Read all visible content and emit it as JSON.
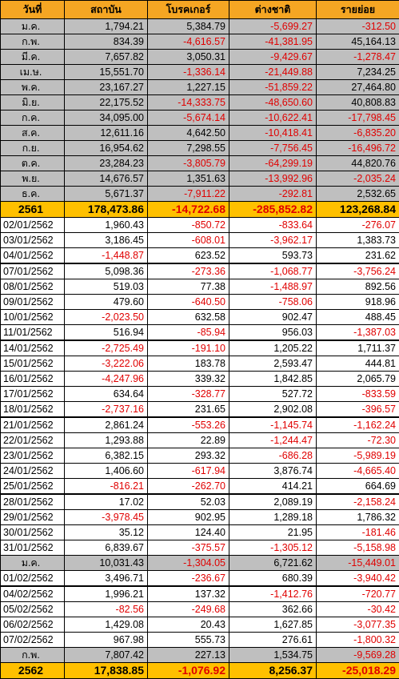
{
  "colors": {
    "header": "#f5a623",
    "month_row": "#bfbfbf",
    "year_row": "#ffc000",
    "negative": "#e00000"
  },
  "headers": [
    "วันที่",
    "สถาบัน",
    "โบรคเกอร์",
    "ต่างชาติ",
    "รายย่อย"
  ],
  "rows": [
    {
      "type": "month",
      "cells": [
        "ม.ค.",
        "1,794.21",
        "5,384.79",
        "-5,699.27",
        "-312.50"
      ]
    },
    {
      "type": "month",
      "cells": [
        "ก.พ.",
        "834.39",
        "-4,616.57",
        "-41,381.95",
        "45,164.13"
      ]
    },
    {
      "type": "month",
      "cells": [
        "มี.ค.",
        "7,657.82",
        "3,050.31",
        "-9,429.67",
        "-1,278.47"
      ]
    },
    {
      "type": "month",
      "cells": [
        "เม.ษ.",
        "15,551.70",
        "-1,336.14",
        "-21,449.88",
        "7,234.25"
      ]
    },
    {
      "type": "month",
      "cells": [
        "พ.ค.",
        "23,167.27",
        "1,227.15",
        "-51,859.22",
        "27,464.80"
      ]
    },
    {
      "type": "month",
      "cells": [
        "มิ.ย.",
        "22,175.52",
        "-14,333.75",
        "-48,650.60",
        "40,808.83"
      ]
    },
    {
      "type": "month",
      "cells": [
        "ก.ค.",
        "34,095.00",
        "-5,674.14",
        "-10,622.41",
        "-17,798.45"
      ]
    },
    {
      "type": "month",
      "cells": [
        "ส.ค.",
        "12,611.16",
        "4,642.50",
        "-10,418.41",
        "-6,835.20"
      ]
    },
    {
      "type": "month",
      "cells": [
        "ก.ย.",
        "16,954.62",
        "7,298.55",
        "-7,756.45",
        "-16,496.72"
      ]
    },
    {
      "type": "month",
      "cells": [
        "ต.ค.",
        "23,284.23",
        "-3,805.79",
        "-64,299.19",
        "44,820.76"
      ]
    },
    {
      "type": "month",
      "cells": [
        "พ.ย.",
        "14,676.57",
        "1,351.63",
        "-13,992.96",
        "-2,035.24"
      ]
    },
    {
      "type": "month",
      "cells": [
        "ธ.ค.",
        "5,671.37",
        "-7,911.22",
        "-292.81",
        "2,532.65"
      ]
    },
    {
      "type": "year",
      "cells": [
        "2561",
        "178,473.86",
        "-14,722.68",
        "-285,852.82",
        "123,268.84"
      ]
    },
    {
      "type": "day",
      "cells": [
        "02/01/2562",
        "1,960.43",
        "-850.72",
        "-833.64",
        "-276.07"
      ]
    },
    {
      "type": "day",
      "cells": [
        "03/01/2562",
        "3,186.45",
        "-608.01",
        "-3,962.17",
        "1,383.73"
      ]
    },
    {
      "type": "day",
      "cells": [
        "04/01/2562",
        "-1,448.87",
        "623.52",
        "593.73",
        "231.62"
      ]
    },
    {
      "type": "day",
      "gap": true,
      "cells": [
        "07/01/2562",
        "5,098.36",
        "-273.36",
        "-1,068.77",
        "-3,756.24"
      ]
    },
    {
      "type": "day",
      "cells": [
        "08/01/2562",
        "519.03",
        "77.38",
        "-1,488.97",
        "892.56"
      ]
    },
    {
      "type": "day",
      "cells": [
        "09/01/2562",
        "479.60",
        "-640.50",
        "-758.06",
        "918.96"
      ]
    },
    {
      "type": "day",
      "cells": [
        "10/01/2562",
        "-2,023.50",
        "632.58",
        "902.47",
        "488.45"
      ]
    },
    {
      "type": "day",
      "cells": [
        "11/01/2562",
        "516.94",
        "-85.94",
        "956.03",
        "-1,387.03"
      ]
    },
    {
      "type": "day",
      "gap": true,
      "cells": [
        "14/01/2562",
        "-2,725.49",
        "-191.10",
        "1,205.22",
        "1,711.37"
      ]
    },
    {
      "type": "day",
      "cells": [
        "15/01/2562",
        "-3,222.06",
        "183.78",
        "2,593.47",
        "444.81"
      ]
    },
    {
      "type": "day",
      "cells": [
        "16/01/2562",
        "-4,247.96",
        "339.32",
        "1,842.85",
        "2,065.79"
      ]
    },
    {
      "type": "day",
      "cells": [
        "17/01/2562",
        "634.64",
        "-328.77",
        "527.72",
        "-833.59"
      ]
    },
    {
      "type": "day",
      "cells": [
        "18/01/2562",
        "-2,737.16",
        "231.65",
        "2,902.08",
        "-396.57"
      ]
    },
    {
      "type": "day",
      "gap": true,
      "cells": [
        "21/01/2562",
        "2,861.24",
        "-553.26",
        "-1,145.74",
        "-1,162.24"
      ]
    },
    {
      "type": "day",
      "cells": [
        "22/01/2562",
        "1,293.88",
        "22.89",
        "-1,244.47",
        "-72.30"
      ]
    },
    {
      "type": "day",
      "cells": [
        "23/01/2562",
        "6,382.15",
        "293.32",
        "-686.28",
        "-5,989.19"
      ]
    },
    {
      "type": "day",
      "cells": [
        "24/01/2562",
        "1,406.60",
        "-617.94",
        "3,876.74",
        "-4,665.40"
      ]
    },
    {
      "type": "day",
      "cells": [
        "25/01/2562",
        "-816.21",
        "-262.70",
        "414.21",
        "664.69"
      ]
    },
    {
      "type": "day",
      "gap": true,
      "cells": [
        "28/01/2562",
        "17.02",
        "52.03",
        "2,089.19",
        "-2,158.24"
      ]
    },
    {
      "type": "day",
      "cells": [
        "29/01/2562",
        "-3,978.45",
        "902.95",
        "1,289.18",
        "1,786.32"
      ]
    },
    {
      "type": "day",
      "cells": [
        "30/01/2562",
        "35.12",
        "124.40",
        "21.95",
        "-181.46"
      ]
    },
    {
      "type": "day",
      "cells": [
        "31/01/2562",
        "6,839.67",
        "-375.57",
        "-1,305.12",
        "-5,158.98"
      ]
    },
    {
      "type": "month",
      "cells": [
        "ม.ค.",
        "10,031.43",
        "-1,304.05",
        "6,721.62",
        "-15,449.01"
      ]
    },
    {
      "type": "day",
      "cells": [
        "01/02/2562",
        "3,496.71",
        "-236.67",
        "680.39",
        "-3,940.42"
      ]
    },
    {
      "type": "day",
      "gap": true,
      "cells": [
        "04/02/2562",
        "1,996.21",
        "137.32",
        "-1,412.76",
        "-720.77"
      ]
    },
    {
      "type": "day",
      "cells": [
        "05/02/2562",
        "-82.56",
        "-249.68",
        "362.66",
        "-30.42"
      ]
    },
    {
      "type": "day",
      "cells": [
        "06/02/2562",
        "1,429.08",
        "20.43",
        "1,627.85",
        "-3,077.35"
      ]
    },
    {
      "type": "day",
      "cells": [
        "07/02/2562",
        "967.98",
        "555.73",
        "276.61",
        "-1,800.32"
      ]
    },
    {
      "type": "month",
      "cells": [
        "ก.พ.",
        "7,807.42",
        "227.13",
        "1,534.75",
        "-9,569.28"
      ]
    },
    {
      "type": "year",
      "cells": [
        "2562",
        "17,838.85",
        "-1,076.92",
        "8,256.37",
        "-25,018.29"
      ]
    }
  ]
}
